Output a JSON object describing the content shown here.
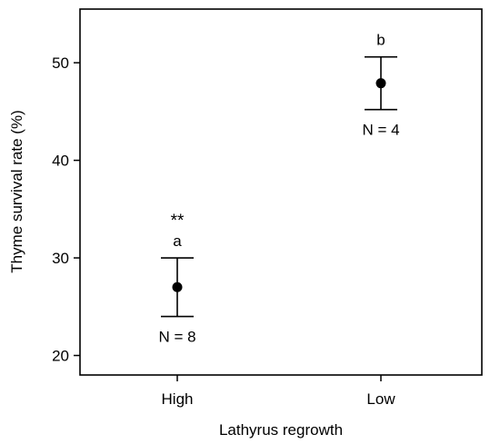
{
  "chart_data": {
    "type": "scatter",
    "categories": [
      "High",
      "Low"
    ],
    "points": [
      {
        "category": "High",
        "mean": 27.0,
        "lower": 24.0,
        "upper": 30.0,
        "letter": "a",
        "significance": "**",
        "n_label": "N = 8"
      },
      {
        "category": "Low",
        "mean": 47.9,
        "lower": 45.2,
        "upper": 50.6,
        "letter": "b",
        "significance": "",
        "n_label": "N = 4"
      }
    ],
    "xlabel": "Lathyrus regrowth",
    "ylabel": "Thyme survival rate (%)",
    "ylim": [
      18.0,
      55.5
    ],
    "yticks": [
      20,
      30,
      40,
      50
    ],
    "grid": false,
    "legend": "none",
    "colors": {
      "marker": "#000000",
      "axis": "#000000"
    }
  }
}
